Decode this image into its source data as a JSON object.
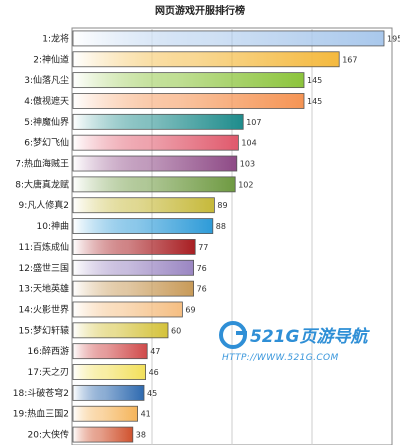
{
  "chart_data": {
    "type": "bar",
    "orientation": "horizontal",
    "title": "网页游戏开服排行榜",
    "categories": [
      "1:龙将",
      "2:神仙道",
      "3:仙落凡尘",
      "4:傲视遮天",
      "5:神魔仙界",
      "6:梦幻飞仙",
      "7:热血海贼王",
      "8:大唐真龙赋",
      "9:凡人修真2",
      "10:神曲",
      "11:百炼成仙",
      "12:盛世三国",
      "13:天地英雄",
      "14:火影世界",
      "15:梦幻轩辕",
      "16:醉西游",
      "17:天之刃",
      "18:斗破苍穹2",
      "19:热血三国2",
      "20:大侠传"
    ],
    "values": [
      195,
      167,
      145,
      145,
      107,
      104,
      103,
      102,
      89,
      88,
      77,
      76,
      76,
      69,
      60,
      47,
      46,
      45,
      41,
      38
    ],
    "xlim": [
      0,
      200
    ],
    "grid": true,
    "colors": [
      "#a9c8ec",
      "#f4b93e",
      "#8cc43c",
      "#f59454",
      "#1e8c8c",
      "#e0596c",
      "#8e4a86",
      "#6f9a42",
      "#c6b93a",
      "#2e9bd8",
      "#a81e22",
      "#9a86c2",
      "#c89a58",
      "#f5be82",
      "#d4c23a",
      "#d04a4a",
      "#f2e05a",
      "#2e6ab0",
      "#f5b45a",
      "#d0522e"
    ]
  },
  "watermark": {
    "brand": "521G页游导航",
    "url": "HTTP://WWW.521G.COM"
  }
}
